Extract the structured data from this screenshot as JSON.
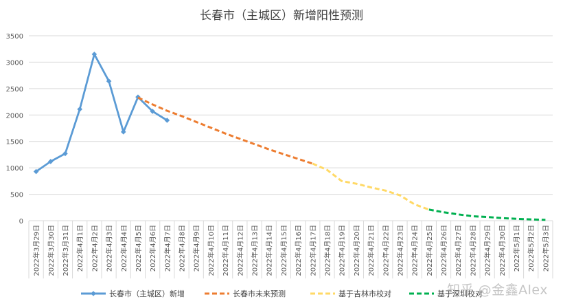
{
  "watermark": "知乎 @金鑫Alex",
  "chart_data": {
    "type": "line",
    "title": "长春市（主城区）新增阳性预测",
    "xlabel": "",
    "ylabel": "",
    "ylim": [
      0,
      3500
    ],
    "yticks": [
      0,
      500,
      1000,
      1500,
      2000,
      2500,
      3000,
      3500
    ],
    "grid": true,
    "legend_position": "bottom",
    "categories": [
      "2022年3月29日",
      "2022年3月30日",
      "2022年3月31日",
      "2022年4月1日",
      "2022年4月2日",
      "2022年4月3日",
      "2022年4月4日",
      "2022年4月5日",
      "2022年4月6日",
      "2022年4月7日",
      "2022年4月8日",
      "2022年4月9日",
      "2022年4月10日",
      "2022年4月11日",
      "2022年4月12日",
      "2022年4月13日",
      "2022年4月14日",
      "2022年4月15日",
      "2022年4月16日",
      "2022年4月17日",
      "2022年4月18日",
      "2022年4月19日",
      "2022年4月20日",
      "2022年4月21日",
      "2022年4月22日",
      "2022年4月23日",
      "2022年4月24日",
      "2022年4月25日",
      "2022年4月26日",
      "2022年4月27日",
      "2022年4月28日",
      "2022年4月29日",
      "2022年4月30日",
      "2022年5月1日",
      "2022年5月2日",
      "2022年5月3日"
    ],
    "series": [
      {
        "name": "长春市（主城区）新增",
        "color": "#5B9BD5",
        "style": "solid-marker",
        "values": [
          930,
          1120,
          1270,
          2110,
          3150,
          2640,
          1680,
          2340,
          2070,
          1900,
          null,
          null,
          null,
          null,
          null,
          null,
          null,
          null,
          null,
          null,
          null,
          null,
          null,
          null,
          null,
          null,
          null,
          null,
          null,
          null,
          null,
          null,
          null,
          null,
          null,
          null
        ]
      },
      {
        "name": "长春市未来预测",
        "color": "#ED7D31",
        "style": "dashed",
        "values": [
          null,
          null,
          null,
          null,
          null,
          null,
          null,
          2330,
          2200,
          2080,
          1980,
          1870,
          1760,
          1650,
          1550,
          1450,
          1350,
          1260,
          1170,
          1080,
          null,
          null,
          null,
          null,
          null,
          null,
          null,
          null,
          null,
          null,
          null,
          null,
          null,
          null,
          null,
          null
        ]
      },
      {
        "name": "基于吉林市校对",
        "color": "#FFD966",
        "style": "dashed",
        "values": [
          null,
          null,
          null,
          null,
          null,
          null,
          null,
          null,
          null,
          null,
          null,
          null,
          null,
          null,
          null,
          null,
          null,
          null,
          null,
          1080,
          960,
          750,
          700,
          630,
          570,
          480,
          310,
          210,
          null,
          null,
          null,
          null,
          null,
          null,
          null,
          null
        ]
      },
      {
        "name": "基于深圳校对",
        "color": "#00B050",
        "style": "dashed",
        "values": [
          null,
          null,
          null,
          null,
          null,
          null,
          null,
          null,
          null,
          null,
          null,
          null,
          null,
          null,
          null,
          null,
          null,
          null,
          null,
          null,
          null,
          null,
          null,
          null,
          null,
          null,
          null,
          210,
          160,
          120,
          85,
          70,
          50,
          35,
          25,
          15
        ]
      }
    ]
  }
}
